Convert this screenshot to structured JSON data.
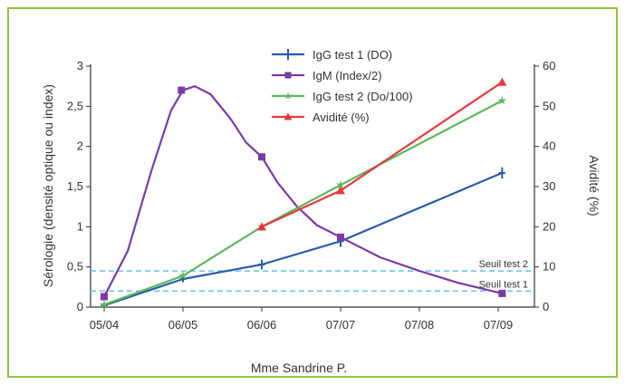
{
  "chart_data": {
    "type": "line",
    "xlabel": "Mme Sandrine P.",
    "ylabel": "Sérologie (densité optique ou index)",
    "y2label": "Avidité (%)",
    "categories": [
      "05/04",
      "06/05",
      "06/06",
      "07/07",
      "07/08",
      "07/09"
    ],
    "ylim": [
      0,
      3
    ],
    "y2lim": [
      0,
      60
    ],
    "yticks": [
      "0",
      "0,5",
      "1",
      "1,5",
      "2",
      "2,5",
      "3"
    ],
    "y2ticks": [
      "0",
      "10",
      "20",
      "30",
      "40",
      "50",
      "60"
    ],
    "legend_position": "top-center",
    "grid": false,
    "series": [
      {
        "name": "IgG test 1 (DO)",
        "color": "#2a5caa",
        "marker": "errorbar",
        "axis": "left",
        "points": [
          [
            0,
            0.02
          ],
          [
            1,
            0.35
          ],
          [
            2,
            0.53
          ],
          [
            3,
            0.82
          ],
          [
            5.05,
            1.67
          ]
        ],
        "errors": [
          0.02,
          0.04,
          0.06,
          0.07,
          0.07
        ]
      },
      {
        "name": "IgM (Index/2)",
        "color": "#7b3aa8",
        "marker": "square",
        "axis": "left",
        "smooth": true,
        "points": [
          [
            0,
            0.13
          ],
          [
            0.98,
            2.7
          ],
          [
            2,
            1.87
          ],
          [
            3,
            0.87
          ],
          [
            5.05,
            0.17
          ]
        ],
        "curve": [
          [
            0,
            0.13
          ],
          [
            0.3,
            0.7
          ],
          [
            0.6,
            1.7
          ],
          [
            0.85,
            2.45
          ],
          [
            1,
            2.7
          ],
          [
            1.15,
            2.75
          ],
          [
            1.35,
            2.65
          ],
          [
            1.6,
            2.35
          ],
          [
            1.8,
            2.05
          ],
          [
            2,
            1.87
          ],
          [
            2.2,
            1.55
          ],
          [
            2.45,
            1.25
          ],
          [
            2.7,
            1.02
          ],
          [
            3,
            0.87
          ],
          [
            3.5,
            0.62
          ],
          [
            4,
            0.45
          ],
          [
            4.5,
            0.3
          ],
          [
            5.05,
            0.17
          ]
        ]
      },
      {
        "name": "IgG test 2 (Do/100)",
        "color": "#5cb85c",
        "marker": "star",
        "axis": "left",
        "points": [
          [
            0,
            0.03
          ],
          [
            1,
            0.39
          ],
          [
            2,
            1.0
          ],
          [
            3,
            1.52
          ],
          [
            5.05,
            2.57
          ]
        ]
      },
      {
        "name": "Avidité (%)",
        "color": "#e8383d",
        "marker": "triangle",
        "axis": "right",
        "points": [
          [
            2,
            20
          ],
          [
            3,
            29
          ],
          [
            5.05,
            56
          ]
        ]
      }
    ],
    "thresholds": [
      {
        "label": "Seuil test 2",
        "value": 0.45,
        "color": "#47b9e8"
      },
      {
        "label": "Seuil test 1",
        "value": 0.2,
        "color": "#47b9e8"
      }
    ]
  }
}
